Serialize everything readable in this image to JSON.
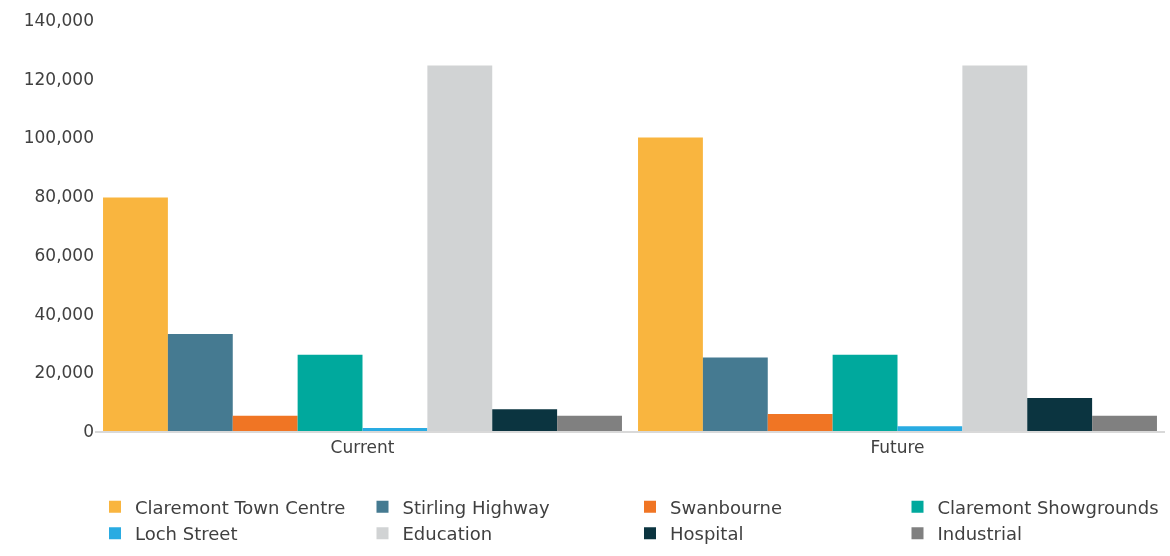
{
  "chart_data": {
    "type": "bar",
    "categories": [
      "Current",
      "Future"
    ],
    "series": [
      {
        "name": "Claremont Town Centre",
        "color": "#f9b53f",
        "values": [
          79500,
          100000
        ]
      },
      {
        "name": "Stirling Highway",
        "color": "#457a91",
        "values": [
          33000,
          25000
        ]
      },
      {
        "name": "Swanbourne",
        "color": "#f07524",
        "values": [
          5200,
          5800
        ]
      },
      {
        "name": "Claremont Showgrounds",
        "color": "#00a99d",
        "values": [
          26000,
          26000
        ]
      },
      {
        "name": "Loch Street",
        "color": "#29abe2",
        "values": [
          1000,
          1600
        ]
      },
      {
        "name": "Education",
        "color": "#d1d3d4",
        "values": [
          124500,
          124500
        ]
      },
      {
        "name": "Hospital",
        "color": "#0b3440",
        "values": [
          7400,
          11200
        ]
      },
      {
        "name": "Industrial",
        "color": "#808080",
        "values": [
          5200,
          5200
        ]
      }
    ],
    "ylim": [
      0,
      140000
    ],
    "yticks": [
      {
        "value": 0,
        "label": "0"
      },
      {
        "value": 20000,
        "label": "20,000"
      },
      {
        "value": 40000,
        "label": "40,000"
      },
      {
        "value": 60000,
        "label": "60,000"
      },
      {
        "value": 80000,
        "label": "80,000"
      },
      {
        "value": 100000,
        "label": "100,000"
      },
      {
        "value": 120000,
        "label": "120,000"
      },
      {
        "value": 140000,
        "label": "140,000"
      }
    ],
    "grid": false,
    "legend": "bottom"
  }
}
